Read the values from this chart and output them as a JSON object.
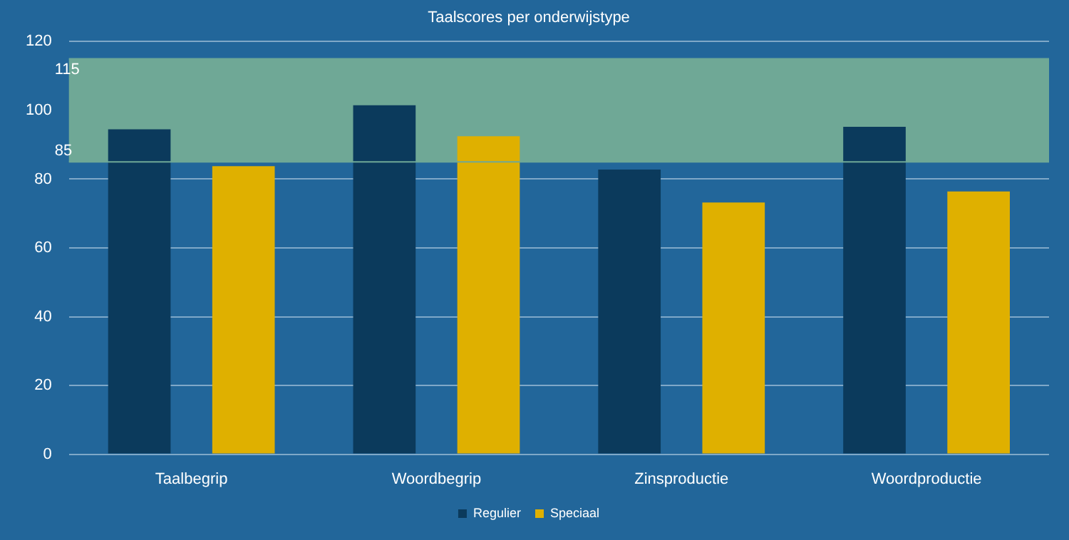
{
  "chart_data": {
    "type": "bar",
    "title": "Taalscores per onderwijstype",
    "categories": [
      "Taalbegrip",
      "Woordbegrip",
      "Zinsproductie",
      "Woordproductie"
    ],
    "series": [
      {
        "name": "Regulier",
        "color": "#0b3a5c",
        "values": [
          94.5,
          101.5,
          82.8,
          95.2
        ]
      },
      {
        "name": "Speciaal",
        "color": "#dfb000",
        "values": [
          83.8,
          92.5,
          73.2,
          76.4
        ]
      }
    ],
    "ylim": [
      0,
      120
    ],
    "yticks": [
      0,
      20,
      40,
      60,
      80,
      100,
      120
    ],
    "grid": "y",
    "legend": "bottom",
    "bands": [
      {
        "axis": "y",
        "from": 85,
        "to": 115,
        "color": "#6fa896"
      }
    ],
    "ref_lines": [
      {
        "axis": "y",
        "value": 115,
        "label": "115",
        "color": "#6fa896"
      },
      {
        "axis": "y",
        "value": 85,
        "label": "85",
        "color": "#6fa896"
      }
    ]
  }
}
